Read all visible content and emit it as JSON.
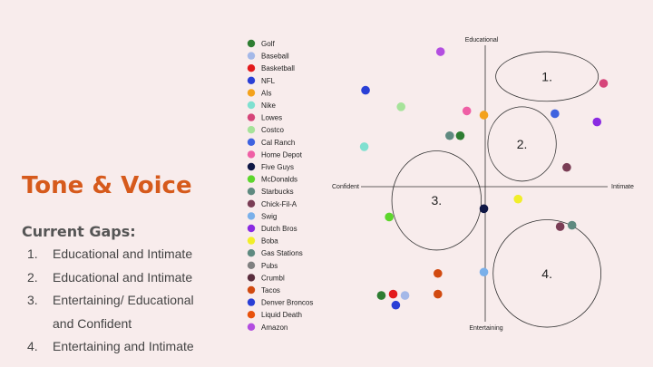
{
  "slide": {
    "title": "Tone & Voice",
    "gaps_heading": "Current Gaps:",
    "gaps": [
      {
        "num": "1.",
        "text": "Educational and Intimate"
      },
      {
        "num": "2.",
        "text": "Educational and Intimate"
      },
      {
        "num": "3.",
        "text": "Entertaining/ Educational and Confident"
      },
      {
        "num": "4.",
        "text": "Entertaining and Intimate"
      }
    ]
  },
  "chart_data": {
    "type": "scatter",
    "title": "",
    "axes": {
      "top": "Educational",
      "bottom": "Entertaining",
      "left": "Confident",
      "right": "Intimate",
      "x_range": [
        -1,
        1
      ],
      "y_range": [
        -1,
        1
      ]
    },
    "legend_position": "left",
    "series": [
      {
        "name": "Golf",
        "color": "#2e7d32",
        "points": [
          [
            -0.79,
            -0.79
          ],
          [
            -0.19,
            0.37
          ]
        ]
      },
      {
        "name": "Baseball",
        "color": "#a4b8e8",
        "points": [
          [
            -0.61,
            -0.79
          ]
        ]
      },
      {
        "name": "Basketball",
        "color": "#e31a1c",
        "points": [
          [
            -0.7,
            -0.78
          ]
        ]
      },
      {
        "name": "NFL",
        "color": "#2a3fd6",
        "points": [
          [
            -0.91,
            0.7
          ]
        ]
      },
      {
        "name": "AIs",
        "color": "#f4a21c",
        "points": [
          [
            -0.01,
            0.52
          ]
        ]
      },
      {
        "name": "Nike",
        "color": "#7fe0d0",
        "points": [
          [
            -0.92,
            0.29
          ]
        ]
      },
      {
        "name": "Lowes",
        "color": "#d6457a",
        "points": [
          [
            0.9,
            0.75
          ]
        ]
      },
      {
        "name": "Costco",
        "color": "#a6e39a",
        "points": [
          [
            -0.64,
            0.58
          ]
        ]
      },
      {
        "name": "Cal Ranch",
        "color": "#3f63e0",
        "points": [
          [
            0.53,
            0.53
          ]
        ]
      },
      {
        "name": "Home Depot",
        "color": "#ef5fa5",
        "points": [
          [
            -0.14,
            0.55
          ]
        ]
      },
      {
        "name": "Five Guys",
        "color": "#0f1745",
        "points": [
          [
            -0.01,
            -0.16
          ]
        ]
      },
      {
        "name": "McDonalds",
        "color": "#5dd62c",
        "points": [
          [
            -0.73,
            -0.22
          ]
        ]
      },
      {
        "name": "Starbucks",
        "color": "#5f8a80",
        "points": [
          [
            -0.27,
            0.37
          ],
          [
            0.66,
            -0.28
          ]
        ]
      },
      {
        "name": "Chick-Fil-A",
        "color": "#7a3d55",
        "points": [
          [
            0.62,
            0.14
          ],
          [
            0.57,
            -0.29
          ]
        ]
      },
      {
        "name": "Swig",
        "color": "#7ab0ea",
        "points": [
          [
            -0.01,
            -0.62
          ]
        ]
      },
      {
        "name": "Dutch Bros",
        "color": "#8a2be2",
        "points": [
          [
            0.85,
            0.47
          ]
        ]
      },
      {
        "name": "Boba",
        "color": "#f1ee2a",
        "points": [
          [
            0.25,
            -0.09
          ]
        ]
      },
      {
        "name": "Gas Stations",
        "color": "#5f8a80",
        "points": []
      },
      {
        "name": "Pubs",
        "color": "#808080",
        "points": []
      },
      {
        "name": "Crumbl",
        "color": "#5a2d3d",
        "points": []
      },
      {
        "name": "Tacos",
        "color": "#d14a10",
        "points": [
          [
            -0.36,
            -0.63
          ],
          [
            -0.36,
            -0.78
          ]
        ]
      },
      {
        "name": "Denver Broncos",
        "color": "#2a3fd6",
        "points": [
          [
            -0.68,
            -0.86
          ]
        ]
      },
      {
        "name": "Liquid Death",
        "color": "#e8520c",
        "points": []
      },
      {
        "name": "Amazon",
        "color": "#b34ee0",
        "points": [
          [
            -0.34,
            0.98
          ]
        ]
      }
    ],
    "zones": [
      {
        "label": "1.",
        "cx": 0.47,
        "cy": 0.8,
        "rx": 0.39,
        "ry": 0.18
      },
      {
        "label": "2.",
        "cx": 0.28,
        "cy": 0.31,
        "rx": 0.26,
        "ry": 0.27
      },
      {
        "label": "3.",
        "cx": -0.37,
        "cy": -0.1,
        "rx": 0.34,
        "ry": 0.36
      },
      {
        "label": "4.",
        "cx": 0.47,
        "cy": -0.63,
        "rx": 0.41,
        "ry": 0.39
      }
    ]
  }
}
